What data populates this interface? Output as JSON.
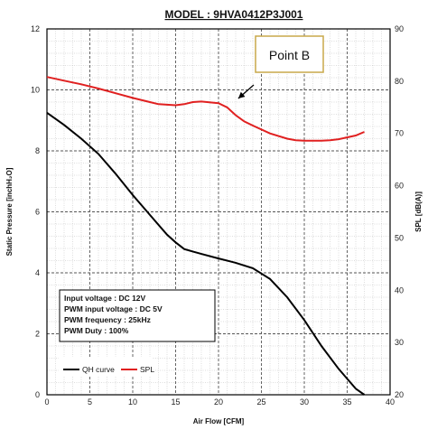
{
  "chart_data": {
    "type": "line",
    "title": "MODEL : 9HVA0412P3J001",
    "xlabel": "Air Flow [CFM]",
    "ylabel": "Static Pressure [inchH₂O]",
    "y2label": "SPL [dB(A)]",
    "xlim": [
      0,
      40
    ],
    "ylim": [
      0,
      12
    ],
    "y2lim": [
      20,
      90
    ],
    "x_ticks": [
      "0",
      "5",
      "10",
      "15",
      "20",
      "25",
      "30",
      "35",
      "40"
    ],
    "y_ticks": [
      "0",
      "2",
      "4",
      "6",
      "8",
      "10",
      "12"
    ],
    "y2_ticks": [
      "20",
      "30",
      "40",
      "50",
      "60",
      "70",
      "80",
      "90"
    ],
    "grid": true,
    "series": [
      {
        "name": "QH curve",
        "axis": "left",
        "color": "#000000",
        "x": [
          0,
          2,
          4,
          6,
          8,
          10,
          12,
          14,
          15,
          16,
          17,
          18,
          20,
          22,
          24,
          26,
          28,
          30,
          32,
          34,
          36,
          37
        ],
        "y": [
          9.25,
          8.85,
          8.4,
          7.9,
          7.25,
          6.55,
          5.9,
          5.25,
          5.0,
          4.78,
          4.7,
          4.62,
          4.47,
          4.33,
          4.15,
          3.8,
          3.2,
          2.45,
          1.6,
          0.85,
          0.2,
          0
        ]
      },
      {
        "name": "SPL",
        "axis": "right",
        "color": "#e02020",
        "x": [
          0,
          2,
          4,
          6,
          8,
          10,
          12,
          13,
          15,
          16,
          17,
          18,
          20,
          21,
          22,
          23,
          24,
          26,
          28,
          29,
          30,
          32,
          33,
          34,
          36,
          37
        ],
        "y": [
          80.8,
          80.1,
          79.4,
          78.6,
          77.7,
          76.8,
          76.0,
          75.6,
          75.4,
          75.6,
          76.0,
          76.1,
          75.8,
          75.0,
          73.5,
          72.3,
          71.5,
          70.0,
          69.0,
          68.7,
          68.6,
          68.6,
          68.7,
          68.9,
          69.6,
          70.3
        ]
      }
    ],
    "legend": {
      "placement": "bottom-left"
    },
    "annotation": {
      "label": "Point B",
      "target_x": 22.3,
      "target_y2": 76.0
    },
    "spec_box": {
      "lines": [
        "Input voltage : DC 12V",
        "PWM input voltage : DC 5V",
        "PWM frequency : 25kHz",
        "PWM Duty : 100%"
      ]
    }
  }
}
